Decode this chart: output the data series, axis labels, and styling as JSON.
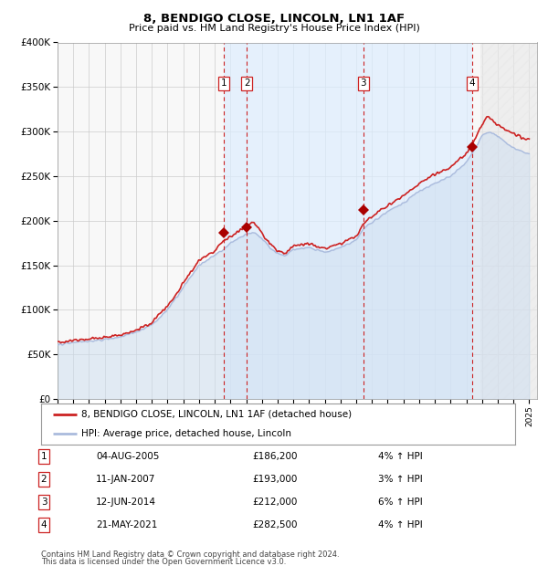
{
  "title": "8, BENDIGO CLOSE, LINCOLN, LN1 1AF",
  "subtitle": "Price paid vs. HM Land Registry's House Price Index (HPI)",
  "ylim": [
    0,
    400000
  ],
  "yticks": [
    0,
    50000,
    100000,
    150000,
    200000,
    250000,
    300000,
    350000,
    400000
  ],
  "ytick_labels": [
    "£0",
    "£50K",
    "£100K",
    "£150K",
    "£200K",
    "£250K",
    "£300K",
    "£350K",
    "£400K"
  ],
  "xlim_start": 1995.0,
  "xlim_end": 2025.5,
  "xtick_years": [
    1995,
    1996,
    1997,
    1998,
    1999,
    2000,
    2001,
    2002,
    2003,
    2004,
    2005,
    2006,
    2007,
    2008,
    2009,
    2010,
    2011,
    2012,
    2013,
    2014,
    2015,
    2016,
    2017,
    2018,
    2019,
    2020,
    2021,
    2022,
    2023,
    2024,
    2025
  ],
  "hpi_line_color": "#aabbdd",
  "price_color": "#cc2222",
  "marker_color": "#aa0000",
  "dashed_color": "#cc2222",
  "shade_color": "#ddeeff",
  "legend_entries": [
    "8, BENDIGO CLOSE, LINCOLN, LN1 1AF (detached house)",
    "HPI: Average price, detached house, Lincoln"
  ],
  "transactions": [
    {
      "id": 1,
      "date_num": 2005.58,
      "price": 186200,
      "label": "1"
    },
    {
      "id": 2,
      "date_num": 2007.03,
      "price": 193000,
      "label": "2"
    },
    {
      "id": 3,
      "date_num": 2014.44,
      "price": 212000,
      "label": "3"
    },
    {
      "id": 4,
      "date_num": 2021.38,
      "price": 282500,
      "label": "4"
    }
  ],
  "table_rows": [
    {
      "num": "1",
      "date": "04-AUG-2005",
      "price": "£186,200",
      "pct": "4% ↑ HPI"
    },
    {
      "num": "2",
      "date": "11-JAN-2007",
      "price": "£193,000",
      "pct": "3% ↑ HPI"
    },
    {
      "num": "3",
      "date": "12-JUN-2014",
      "price": "£212,000",
      "pct": "6% ↑ HPI"
    },
    {
      "num": "4",
      "date": "21-MAY-2021",
      "price": "£282,500",
      "pct": "4% ↑ HPI"
    }
  ],
  "footnote1": "Contains HM Land Registry data © Crown copyright and database right 2024.",
  "footnote2": "This data is licensed under the Open Government Licence v3.0.",
  "bg_color": "#ffffff",
  "plot_bg_color": "#f8f8f8",
  "grid_color": "#cccccc"
}
